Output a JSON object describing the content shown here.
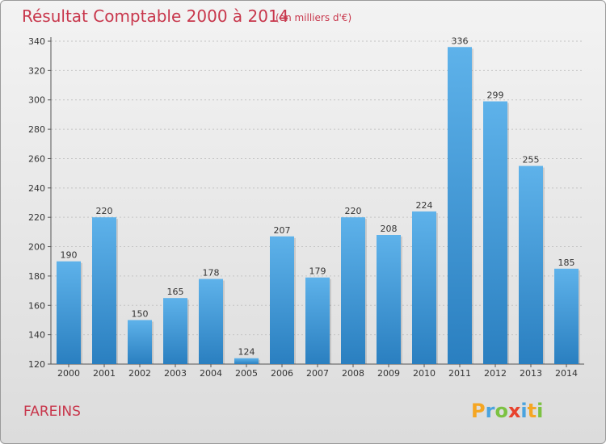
{
  "chart_data": {
    "type": "bar",
    "title": "Résultat Comptable 2000 à 2014",
    "subtitle": "(en milliers d'€)",
    "xlabel": "",
    "ylabel": "",
    "categories": [
      "2000",
      "2001",
      "2002",
      "2003",
      "2004",
      "2005",
      "2006",
      "2007",
      "2008",
      "2009",
      "2010",
      "2011",
      "2012",
      "2013",
      "2014"
    ],
    "values": [
      190,
      220,
      150,
      165,
      178,
      124,
      207,
      179,
      220,
      208,
      224,
      336,
      299,
      255,
      185
    ],
    "ylim": [
      120,
      340
    ],
    "yticks": [
      120,
      140,
      160,
      180,
      200,
      220,
      240,
      260,
      280,
      300,
      320,
      340
    ],
    "grid": true
  },
  "commune": "FAREINS",
  "logo": {
    "letters": [
      "P",
      "r",
      "o",
      "x",
      "i",
      "t",
      "i"
    ],
    "colors": [
      "#f5a623",
      "#4aa3df",
      "#7cc242",
      "#e8432e",
      "#4aa3df",
      "#f5a623",
      "#7cc242"
    ]
  },
  "colors": {
    "bar_light": "#5eb2ea",
    "bar_dark": "#2a7fc0",
    "title": "#c8374c"
  }
}
